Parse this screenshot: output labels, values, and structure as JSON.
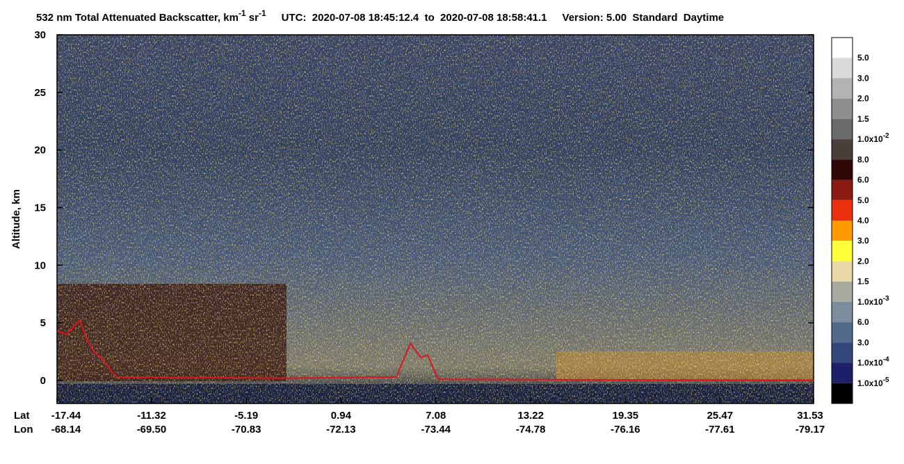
{
  "chart_data": {
    "type": "line",
    "title": {
      "text": "532 nm Total Attenuated Backscatter, km",
      "sup1": "-1",
      "text2": " sr",
      "sup2": "-1"
    },
    "time_range": "UTC:  2020-07-08 18:45:12.4  to  2020-07-08 18:58:41.1",
    "version": "Version: 5.00  Standard  Daytime",
    "y_label": "Altitude, km",
    "x_row_labels": [
      "Lat",
      "Lon"
    ],
    "xlim": [
      -17.44,
      31.53
    ],
    "xticks": [
      -17.44,
      -11.32,
      -5.19,
      0.94,
      7.08,
      13.22,
      19.35,
      25.47,
      31.53
    ],
    "lon_labels": [
      "-68.14",
      "-69.50",
      "-70.83",
      "-72.13",
      "-73.44",
      "-74.78",
      "-76.16",
      "-77.61",
      "-79.17"
    ],
    "ylim": [
      -2,
      30
    ],
    "yticks": [
      0,
      5,
      10,
      15,
      20,
      25,
      30
    ],
    "series": [
      {
        "color": "#e0141e",
        "x": [
          -17.44,
          -16.85,
          -15.95,
          -15.5,
          -15.05,
          -14.6,
          -14.29,
          -13.93,
          -13.57,
          -3.13,
          4.52,
          5.43,
          6.1,
          6.55,
          7.23,
          31.53
        ],
        "values": [
          4.3,
          4.0,
          5.2,
          3.5,
          2.5,
          2.0,
          1.5,
          0.8,
          0.3,
          0.2,
          0.3,
          3.2,
          2.0,
          2.2,
          0.1,
          0.0
        ]
      }
    ],
    "colorbar": {
      "colors": [
        "#ffffff",
        "#d9d9d9",
        "#b3b3b3",
        "#8e8e8e",
        "#6a6a6a",
        "#4a3e3b",
        "#300808",
        "#8a1a12",
        "#ea300c",
        "#ff9a00",
        "#ffff3a",
        "#ead9a8",
        "#a9aa9e",
        "#7b8c9c",
        "#526a8b",
        "#34477b",
        "#1d2068",
        "#000000"
      ],
      "labels": [
        {
          "text": "5.0"
        },
        {
          "text": "3.0"
        },
        {
          "text": "2.0"
        },
        {
          "text": "1.5"
        },
        {
          "text": "1.0x10",
          "sup": "-2"
        },
        {
          "text": "8.0"
        },
        {
          "text": "6.0"
        },
        {
          "text": "5.0"
        },
        {
          "text": "4.0"
        },
        {
          "text": "3.0"
        },
        {
          "text": "2.0"
        },
        {
          "text": "1.5"
        },
        {
          "text": "1.0x10",
          "sup": "-3"
        },
        {
          "text": "6.0"
        },
        {
          "text": "3.0"
        },
        {
          "text": "1.0x10",
          "sup": "-4"
        },
        {
          "text": "1.0x10",
          "sup": "-5"
        }
      ]
    }
  }
}
